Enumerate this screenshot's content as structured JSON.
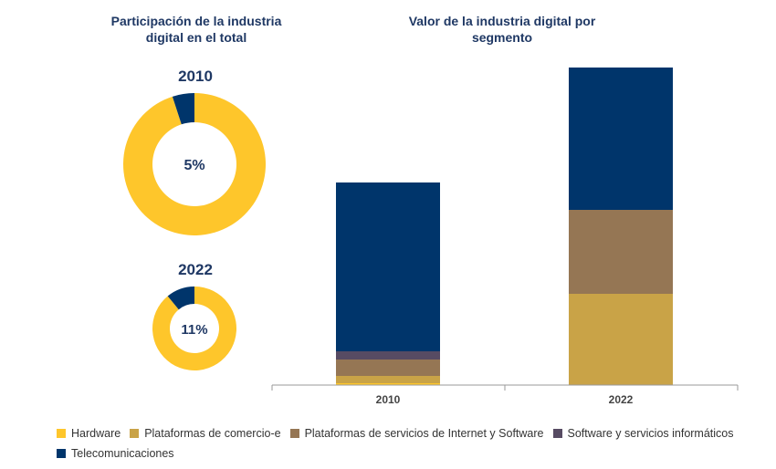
{
  "chart_data": [
    {
      "type": "donut",
      "title": "Participación de la industria digital en el total",
      "colors": {
        "share": "#00356b",
        "rest": "#fec62b"
      },
      "items": [
        {
          "year": "2010",
          "label": "5%",
          "value": 5
        },
        {
          "year": "2022",
          "label": "11%",
          "value": 11
        }
      ]
    },
    {
      "type": "bar",
      "stacked": true,
      "title": "Valor de la industria digital por segmento",
      "categories": [
        "2010",
        "2022"
      ],
      "ylim": [
        0,
        350
      ],
      "grid": false,
      "legend": "bottom",
      "series": [
        {
          "name": "Hardware",
          "color": "#fec62b",
          "values": [
            2,
            0
          ]
        },
        {
          "name": "Plataformas de comercio-e",
          "color": "#c9a347",
          "values": [
            8,
            100
          ]
        },
        {
          "name": "Plataformas de servicios de Internet y Software",
          "color": "#957654",
          "values": [
            18,
            92
          ]
        },
        {
          "name": "Software y servicios informáticos",
          "color": "#574b63",
          "values": [
            9,
            0
          ]
        },
        {
          "name": "Telecomunicaciones",
          "color": "#00356b",
          "values": [
            185,
            156
          ]
        }
      ]
    }
  ]
}
